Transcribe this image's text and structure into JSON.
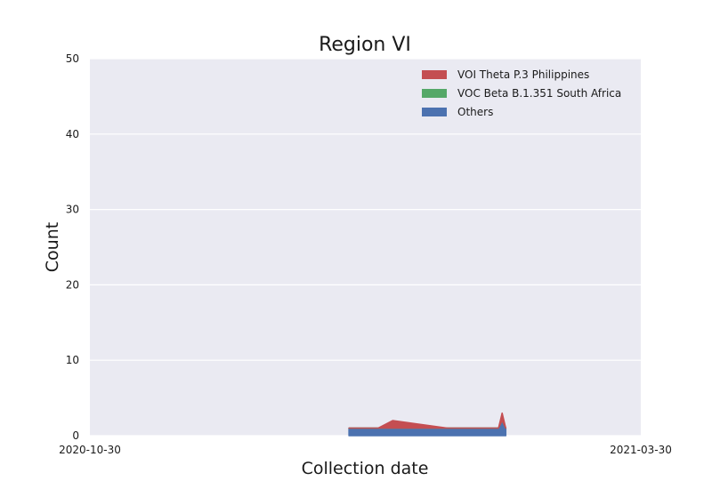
{
  "chart_data": {
    "type": "area",
    "stacked": true,
    "title": "Region VI",
    "xlabel": "Collection date",
    "ylabel": "Count",
    "xlim": [
      "2020-10-30",
      "2021-03-30"
    ],
    "ylim": [
      0,
      50
    ],
    "x_ticks": [
      "2020-10-30",
      "2021-03-30"
    ],
    "y_ticks": [
      0,
      10,
      20,
      30,
      40,
      50
    ],
    "grid": true,
    "legend_position": "top-right",
    "x": [
      "2021-01-09",
      "2021-01-17",
      "2021-01-21",
      "2021-02-05",
      "2021-02-18",
      "2021-02-19",
      "2021-02-20",
      "2021-02-21"
    ],
    "series": [
      {
        "name": "Others",
        "color": "#4c72b0",
        "values": [
          1,
          1,
          1,
          1,
          1,
          1,
          2,
          1
        ]
      },
      {
        "name": "VOC Beta B.1.351 South Africa",
        "color": "#55a868",
        "values": [
          0,
          0,
          0,
          0,
          0,
          0,
          0,
          0
        ]
      },
      {
        "name": "VOI Theta P.3 Philippines",
        "color": "#c44e52",
        "values": [
          0,
          0,
          1,
          0,
          0,
          0,
          1,
          0
        ]
      }
    ],
    "legend_order": [
      "VOI Theta P.3 Philippines",
      "VOC Beta B.1.351 South Africa",
      "Others"
    ]
  }
}
